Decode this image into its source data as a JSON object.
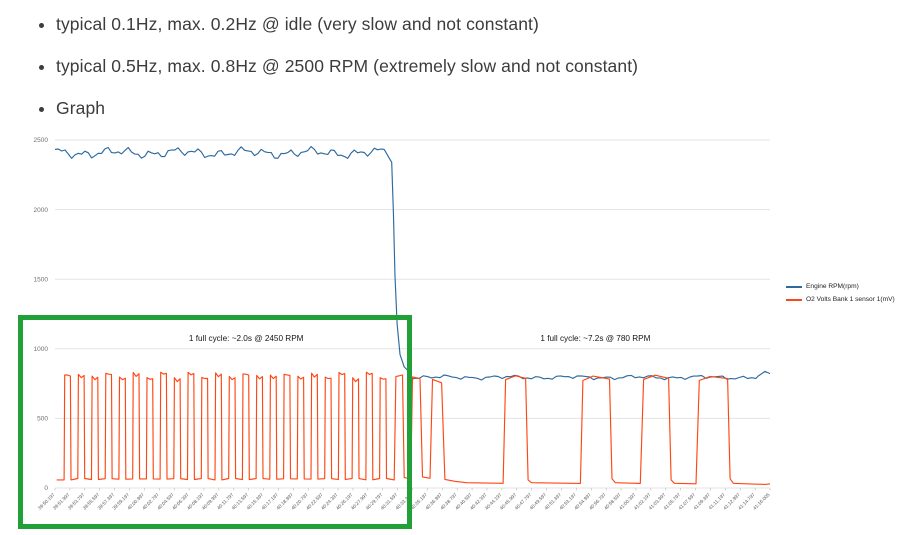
{
  "page": {
    "bullets": [
      "typical 0.1Hz, max. 0.2Hz @ idle (very slow and not constant)",
      "typical 0.5Hz, max. 0.8Hz @ 2500 RPM (extremely slow and not constant)",
      "Graph"
    ]
  },
  "chart_data": {
    "type": "line",
    "title": "",
    "xlabel": "",
    "ylabel": "",
    "ylim": [
      0,
      2500
    ],
    "yticks": [
      0,
      500,
      1000,
      1500,
      2000,
      2500
    ],
    "grid": true,
    "legend_position": "right",
    "x_duration_s": 86,
    "x_tick_labels": [
      "39:50.197",
      "39:51.997",
      "39:53.797",
      "39:55.597",
      "39:57.397",
      "39:59.197",
      "40:00.997",
      "40:02.797",
      "40:04.597",
      "40:06.397",
      "40:08.197",
      "40:09.997",
      "40:11.797",
      "40:13.597",
      "40:15.397",
      "40:17.197",
      "40:18.997",
      "40:20.797",
      "40:22.597",
      "40:24.397",
      "40:26.197",
      "40:27.997",
      "40:29.797",
      "40:31.597",
      "40:33.397",
      "40:35.197",
      "40:36.997",
      "40:38.797",
      "40:40.597",
      "40:42.397",
      "40:44.197",
      "40:45.997",
      "40:47.797",
      "40:49.597",
      "40:51.397",
      "40:53.197",
      "40:54.997",
      "40:56.797",
      "40:58.597",
      "41:00.397",
      "41:02.197",
      "41:03.997",
      "41:05.797",
      "41:07.597",
      "41:09.397",
      "41:11.197",
      "41:12.997",
      "41:14.797",
      "41:16.005"
    ],
    "annotations": [
      {
        "text": "1 full cycle: ~2.0s @ 2450 RPM",
        "t_center": 23,
        "value": 1080
      },
      {
        "text": "1 full cycle: ~7.2s @ 780 RPM",
        "t_center": 65,
        "value": 1080
      }
    ],
    "highlight_box": {
      "color": "#21a038",
      "t_range": [
        -4.4,
        42.9
      ],
      "value_range": [
        -295,
        1240
      ]
    },
    "series": [
      {
        "name": "Engine RPM(rpm)",
        "color": "#2d6a9e",
        "segments": [
          {
            "type": "noisy",
            "t": [
              0,
              40.3
            ],
            "base": 2408,
            "amp": 40,
            "dt": 0.4
          },
          {
            "type": "points",
            "points": [
              [
                40.5,
                2340
              ],
              [
                40.7,
                1980
              ],
              [
                40.9,
                1520
              ],
              [
                41.15,
                1180
              ],
              [
                41.5,
                960
              ],
              [
                42.0,
                870
              ],
              [
                42.6,
                835
              ]
            ]
          },
          {
            "type": "noisy",
            "t": [
              42.8,
              84.4
            ],
            "base": 795,
            "amp": 17,
            "dt": 0.5
          },
          {
            "type": "points",
            "points": [
              [
                84.6,
                805
              ],
              [
                85.4,
                838
              ],
              [
                86,
                822
              ]
            ]
          }
        ]
      },
      {
        "name": "O2 Volts Bank 1 sensor 1(mV)",
        "color": "#ff4713",
        "segments": [
          {
            "type": "square",
            "t": [
              0.2,
              40.6
            ],
            "period": 1.65,
            "duty": 0.46,
            "rise": 0.07,
            "low": 58,
            "high": 812
          },
          {
            "type": "points",
            "points": [
              [
                40.8,
                58
              ],
              [
                41.0,
                800
              ],
              [
                41.8,
                812
              ],
              [
                42.0,
                75
              ],
              [
                42.8,
                66
              ],
              [
                43.0,
                798
              ],
              [
                43.9,
                786
              ],
              [
                44.2,
                80
              ],
              [
                45.1,
                70
              ],
              [
                45.4,
                780
              ],
              [
                46.5,
                756
              ],
              [
                46.9,
                62
              ],
              [
                48.1,
                48
              ],
              [
                49.5,
                38
              ],
              [
                53.9,
                34
              ],
              [
                54.2,
                778
              ],
              [
                55.4,
                806
              ],
              [
                56.6,
                788
              ],
              [
                56.9,
                58
              ],
              [
                57.3,
                38
              ],
              [
                63.2,
                33
              ],
              [
                63.5,
                772
              ],
              [
                64.7,
                804
              ],
              [
                66.7,
                782
              ],
              [
                67.0,
                66
              ],
              [
                67.4,
                38
              ],
              [
                70.4,
                33
              ],
              [
                70.8,
                780
              ],
              [
                72.2,
                810
              ],
              [
                73.8,
                788
              ],
              [
                74.1,
                58
              ],
              [
                74.5,
                34
              ],
              [
                77.1,
                30
              ],
              [
                77.5,
                772
              ],
              [
                78.8,
                802
              ],
              [
                80.9,
                786
              ],
              [
                81.2,
                66
              ],
              [
                81.6,
                34
              ],
              [
                84.0,
                28
              ],
              [
                85.5,
                26
              ],
              [
                86.0,
                30
              ]
            ]
          }
        ]
      }
    ]
  }
}
